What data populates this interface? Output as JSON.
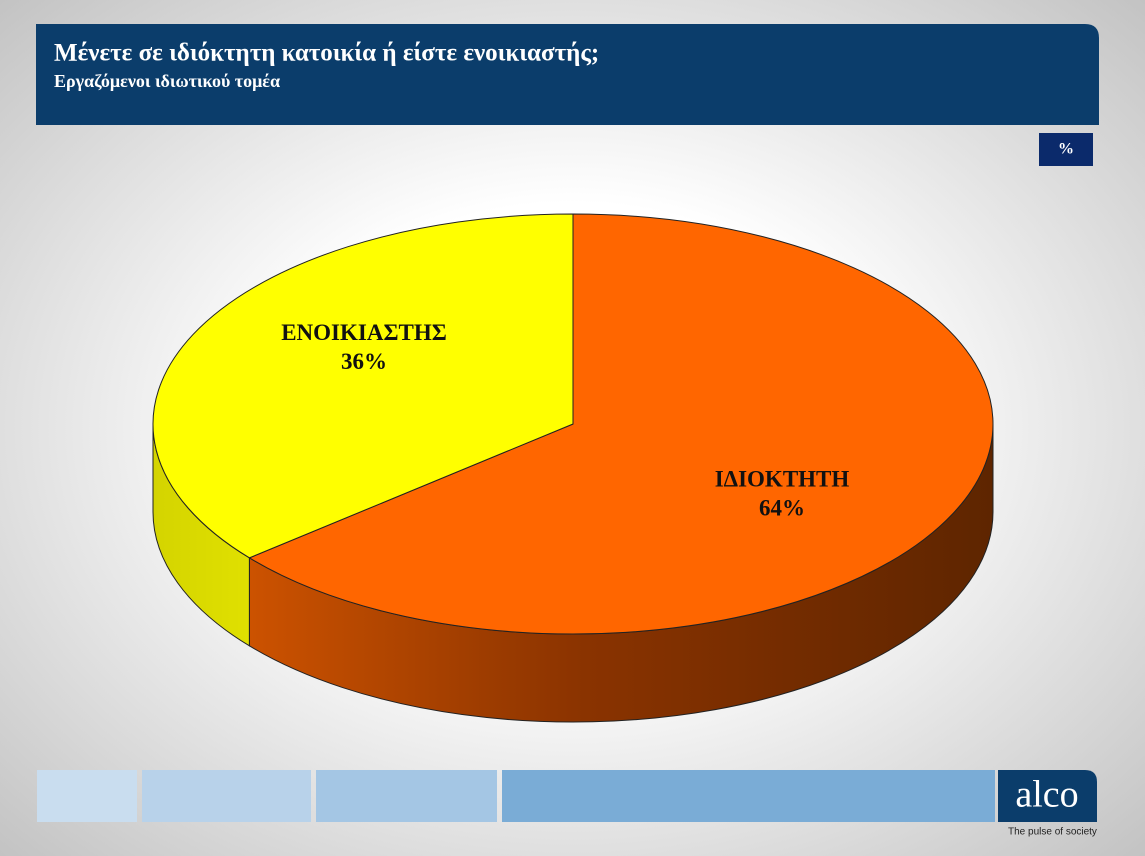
{
  "chart_data": {
    "type": "pie3d",
    "title": "Μένετε σε ιδιόκτητη κατοικία ή είστε ενοικιαστής;",
    "subtitle": "Εργαζόμενοι ιδιωτικού τομέα",
    "unit_label": "%",
    "categories": [
      "ΙΔΙΟΚΤΗΤΗ",
      "ΕΝΟΙΚΙΑΣΤΗΣ"
    ],
    "values": [
      64,
      36
    ],
    "value_labels": [
      "64%",
      "36%"
    ],
    "colors": [
      "#ff6600",
      "#ffff00"
    ]
  },
  "branding": {
    "logo": "alco",
    "tagline": "The pulse of society"
  }
}
